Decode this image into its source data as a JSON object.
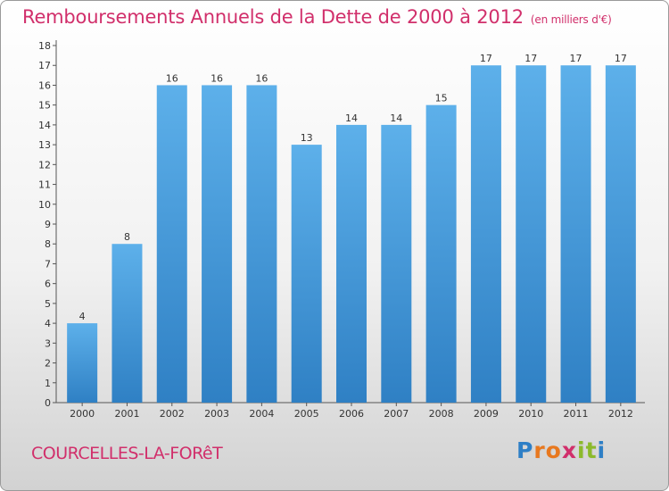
{
  "chart_data": {
    "type": "bar",
    "title": "Remboursements Annuels de la Dette de 2000 à 2012",
    "unit_note": "(en milliers d'€)",
    "categories": [
      "2000",
      "2001",
      "2002",
      "2003",
      "2004",
      "2005",
      "2006",
      "2007",
      "2008",
      "2009",
      "2010",
      "2011",
      "2012"
    ],
    "values": [
      4,
      8,
      16,
      16,
      16,
      13,
      14,
      14,
      15,
      17,
      17,
      17,
      17
    ],
    "ylim": [
      0,
      18
    ],
    "y_ticks": [
      0,
      1,
      2,
      3,
      4,
      5,
      6,
      7,
      8,
      9,
      10,
      11,
      12,
      13,
      14,
      15,
      16,
      17,
      18
    ],
    "xlabel": "",
    "ylabel": "",
    "grid": false,
    "bar_color": "#4a9fe0"
  },
  "footer": {
    "town": "COURCELLES-LA-FORêT",
    "logo_letters": [
      "P",
      "r",
      "o",
      "x",
      "i",
      "t",
      "i"
    ],
    "logo_colors": [
      "#2e7fc6",
      "#e8781e",
      "#e8781e",
      "#d12f6b",
      "#8cba2b",
      "#8cba2b",
      "#2e7fc6"
    ]
  },
  "colors": {
    "accent": "#d12f6b"
  }
}
